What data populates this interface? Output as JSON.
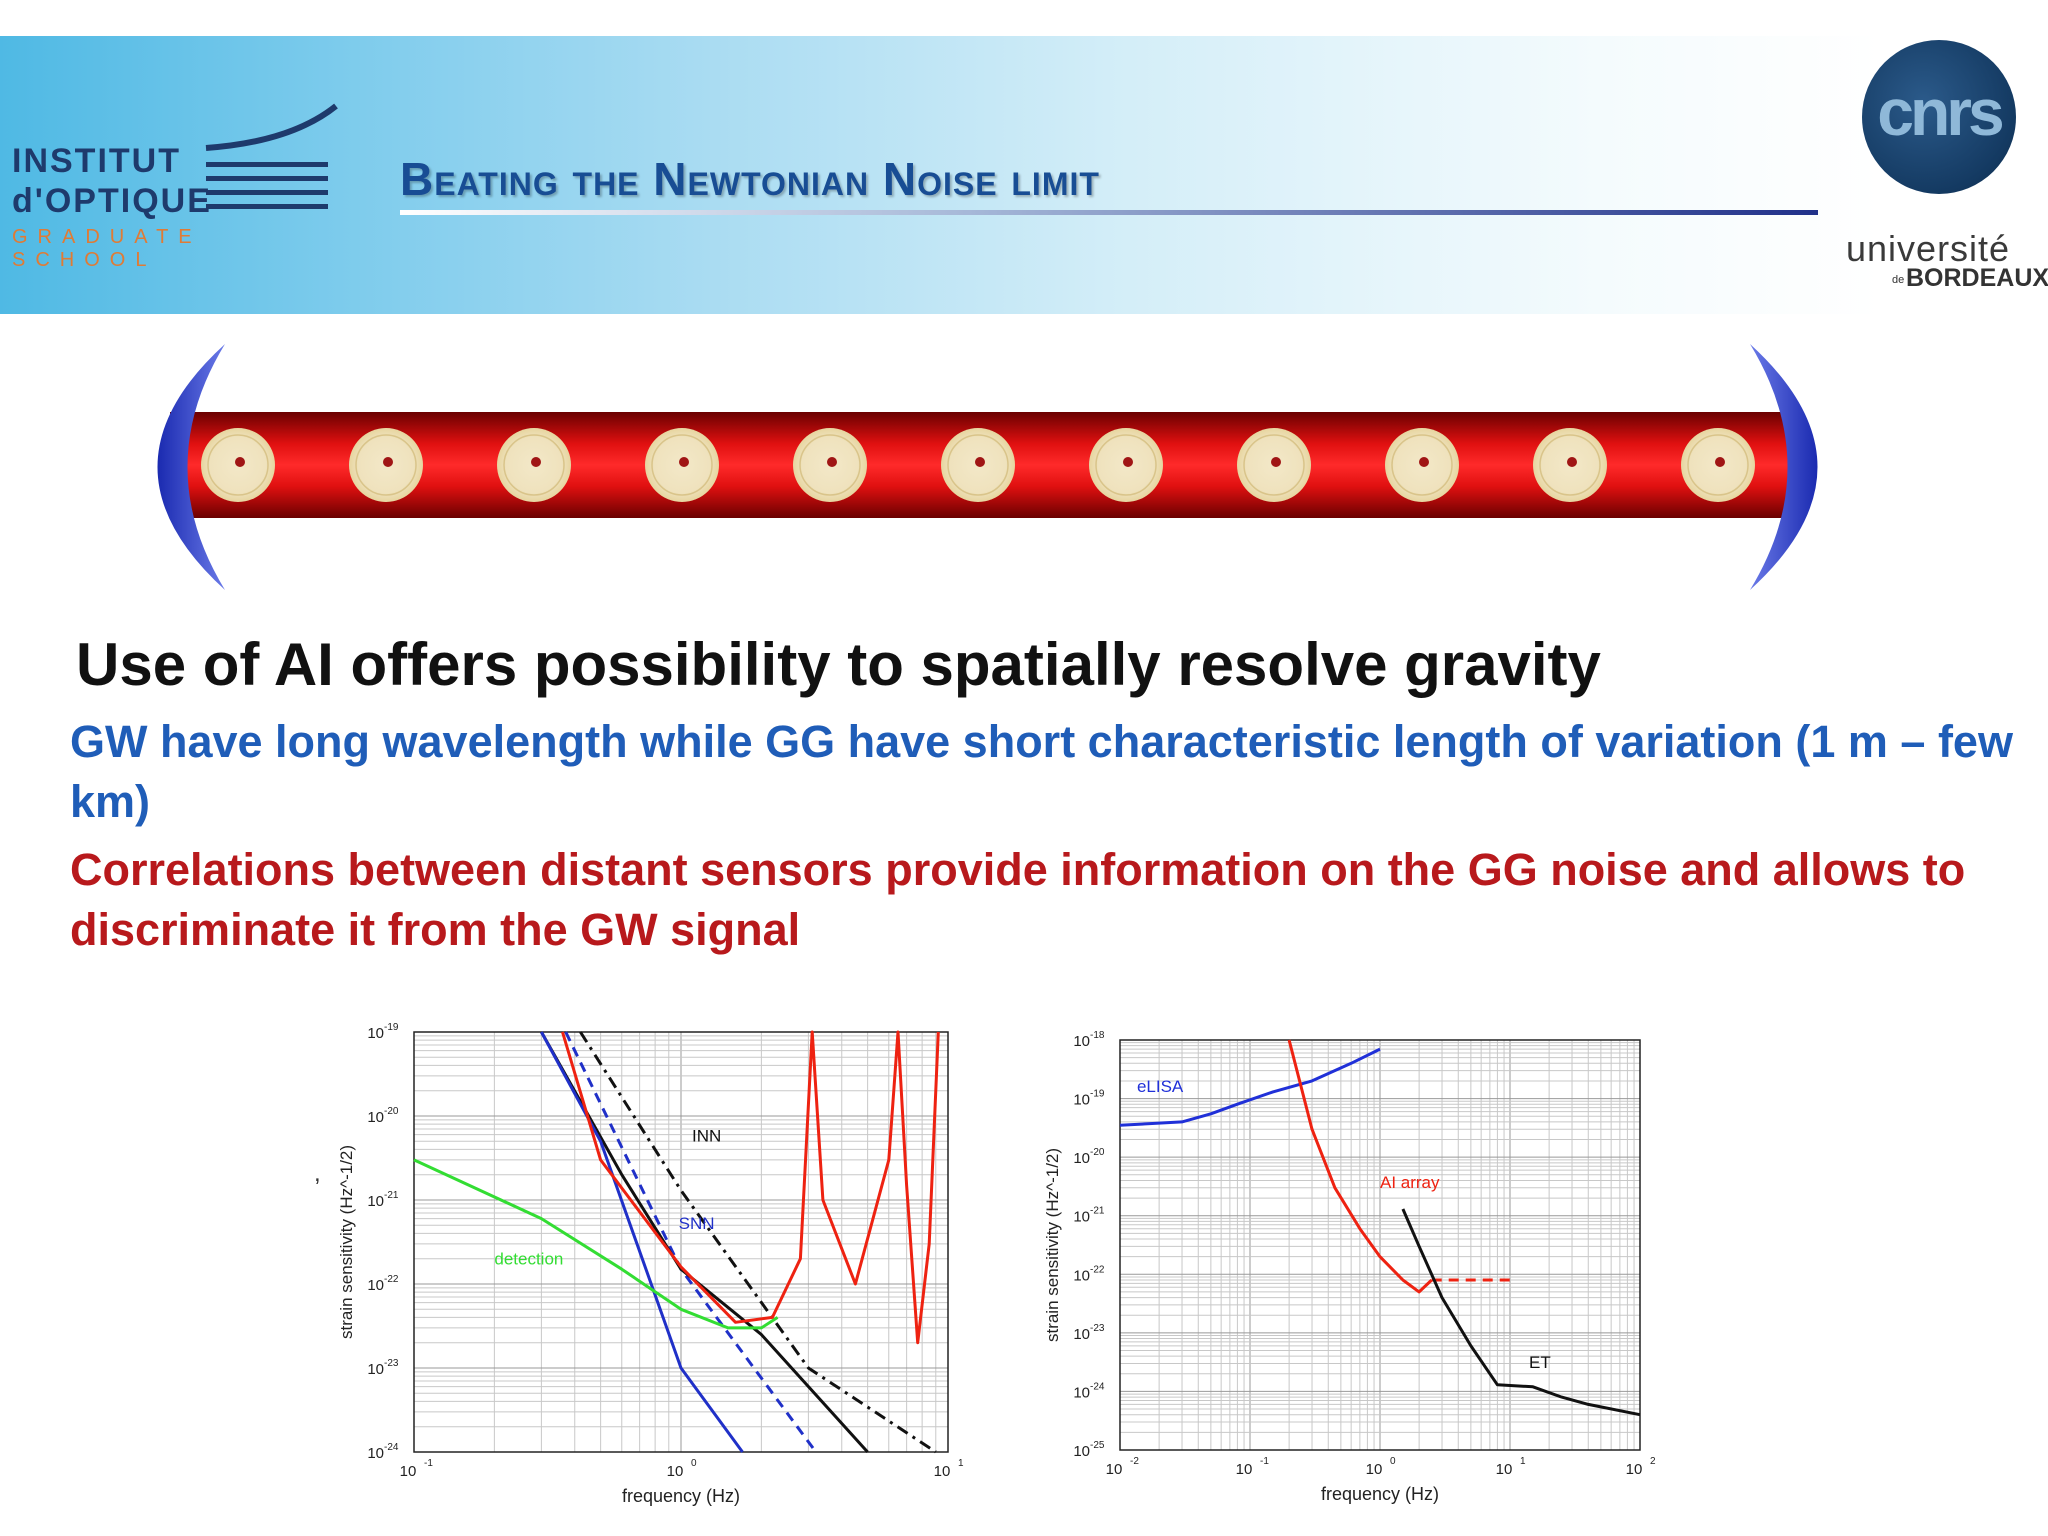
{
  "header": {
    "title": "Beating the Newtonian Noise limit",
    "logos": {
      "institut_line1": "INSTITUT",
      "institut_line2": "d'OPTIQUE",
      "institut_line3": "GRADUATE SCHOOL",
      "cnrs": "cnrs",
      "universite_line1": "université",
      "universite_de": "de",
      "universite_line2": "BORDEAUX"
    }
  },
  "main": {
    "heading": "Use of AI offers possibility to spatially resolve gravity",
    "bullet_blue": "GW have long wavelength while GG have short characteristic length of variation (1 m – few km)",
    "bullet_red": "Correlations between distant sensors provide information on the GG noise and allows to discriminate it from the GW signal",
    "cavity_atom_clouds": 11
  },
  "colors": {
    "title": "#184d94",
    "blue_text": "#1f5db8",
    "red_text": "#b8191c",
    "header_gradient_start": "#4fb9e4"
  },
  "stray_mark": ",",
  "chart_data": [
    {
      "type": "line",
      "xlabel": "frequency (Hz)",
      "ylabel": "strain sensitivity (Hz^-1/2)",
      "x_scale": "log",
      "y_scale": "log",
      "xlim": [
        0.1,
        10
      ],
      "ylim": [
        1e-24,
        1e-19
      ],
      "x_ticks": [
        {
          "base": "10",
          "exp": "-1"
        },
        {
          "base": "10",
          "exp": "0"
        },
        {
          "base": "10",
          "exp": "1"
        }
      ],
      "y_ticks": [
        {
          "base": "10",
          "exp": "-19"
        },
        {
          "base": "10",
          "exp": "-20"
        },
        {
          "base": "10",
          "exp": "-21"
        },
        {
          "base": "10",
          "exp": "-22"
        },
        {
          "base": "10",
          "exp": "-23"
        },
        {
          "base": "10",
          "exp": "-24"
        }
      ],
      "grid": true,
      "annotations": [
        "INN",
        "SNN",
        "detection"
      ],
      "series": [
        {
          "name": "INN",
          "color": "#111111",
          "style": "dashdot",
          "points": [
            [
              0.42,
              1e-19
            ],
            [
              1,
              1.3e-21
            ],
            [
              3,
              1e-23
            ],
            [
              9,
              1e-24
            ]
          ]
        },
        {
          "name": "SNN",
          "color": "#2030c8",
          "style": "dashed",
          "points": [
            [
              0.37,
              1e-19
            ],
            [
              1,
              1.5e-22
            ],
            [
              3.2,
              1e-24
            ]
          ]
        },
        {
          "name": "",
          "color": "#111111",
          "style": "solid",
          "points": [
            [
              0.3,
              1e-19
            ],
            [
              0.6,
              2e-21
            ],
            [
              1,
              1.5e-22
            ],
            [
              2,
              2.5e-23
            ],
            [
              5,
              1e-24
            ]
          ]
        },
        {
          "name": "",
          "color": "#2030c8",
          "style": "solid",
          "points": [
            [
              0.3,
              1e-19
            ],
            [
              0.5,
              5e-21
            ],
            [
              1,
              1e-23
            ],
            [
              1.7,
              1e-24
            ]
          ]
        },
        {
          "name": "detection",
          "color": "#33dd33",
          "style": "solid",
          "points": [
            [
              0.1,
              3e-21
            ],
            [
              0.3,
              6e-22
            ],
            [
              0.6,
              1.5e-22
            ],
            [
              1,
              5e-23
            ],
            [
              1.5,
              3e-23
            ],
            [
              2,
              3e-23
            ],
            [
              2.3,
              4e-23
            ]
          ]
        },
        {
          "name": "",
          "color": "#ee2211",
          "style": "solid",
          "points": [
            [
              0.36,
              1e-19
            ],
            [
              0.5,
              3e-21
            ],
            [
              1,
              1.6e-22
            ],
            [
              1.6,
              3.5e-23
            ],
            [
              2.2,
              4e-23
            ],
            [
              2.8,
              2e-22
            ],
            [
              3.1,
              1e-19
            ],
            [
              3.4,
              1e-21
            ],
            [
              4.5,
              1e-22
            ],
            [
              6,
              3e-21
            ],
            [
              6.5,
              1e-19
            ],
            [
              7,
              1.5e-21
            ],
            [
              7.7,
              2e-23
            ],
            [
              8.5,
              3e-22
            ],
            [
              9.2,
              1e-19
            ]
          ]
        }
      ]
    },
    {
      "type": "line",
      "xlabel": "frequency (Hz)",
      "ylabel": "strain sensitivity (Hz^-1/2)",
      "x_scale": "log",
      "y_scale": "log",
      "xlim": [
        0.01,
        100
      ],
      "ylim": [
        1e-25,
        1e-18
      ],
      "x_ticks": [
        {
          "base": "10",
          "exp": "-2"
        },
        {
          "base": "10",
          "exp": "-1"
        },
        {
          "base": "10",
          "exp": "0"
        },
        {
          "base": "10",
          "exp": "1"
        },
        {
          "base": "10",
          "exp": "2"
        }
      ],
      "y_ticks": [
        {
          "base": "10",
          "exp": "-18"
        },
        {
          "base": "10",
          "exp": "-19"
        },
        {
          "base": "10",
          "exp": "-20"
        },
        {
          "base": "10",
          "exp": "-21"
        },
        {
          "base": "10",
          "exp": "-22"
        },
        {
          "base": "10",
          "exp": "-23"
        },
        {
          "base": "10",
          "exp": "-24"
        },
        {
          "base": "10",
          "exp": "-25"
        }
      ],
      "grid": true,
      "series": [
        {
          "name": "eLISA",
          "color": "#2030d8",
          "style": "solid",
          "points": [
            [
              0.01,
              3.5e-20
            ],
            [
              0.03,
              4e-20
            ],
            [
              0.05,
              5.5e-20
            ],
            [
              0.08,
              8e-20
            ],
            [
              0.15,
              1.3e-19
            ],
            [
              0.3,
              2e-19
            ],
            [
              0.6,
              4e-19
            ],
            [
              1,
              7e-19
            ]
          ]
        },
        {
          "name": "AI array",
          "color": "#ee2211",
          "style": "solid",
          "points": [
            [
              0.2,
              1e-18
            ],
            [
              0.3,
              3e-20
            ],
            [
              0.45,
              3e-21
            ],
            [
              0.7,
              6e-22
            ],
            [
              1,
              2e-22
            ],
            [
              1.5,
              8e-23
            ],
            [
              2,
              5e-23
            ],
            [
              2.5,
              8e-23
            ]
          ]
        },
        {
          "name": "",
          "color": "#ee2211",
          "style": "dashed",
          "points": [
            [
              2.5,
              8e-23
            ],
            [
              10.5,
              8e-23
            ]
          ]
        },
        {
          "name": "ET",
          "color": "#111111",
          "style": "solid",
          "points": [
            [
              1.5,
              1.3e-21
            ],
            [
              2,
              3e-22
            ],
            [
              3,
              4e-23
            ],
            [
              5,
              6e-24
            ],
            [
              8,
              1.3e-24
            ],
            [
              15,
              1.2e-24
            ],
            [
              25,
              8e-25
            ],
            [
              40,
              6e-25
            ],
            [
              100,
              4e-25
            ]
          ]
        }
      ]
    }
  ]
}
